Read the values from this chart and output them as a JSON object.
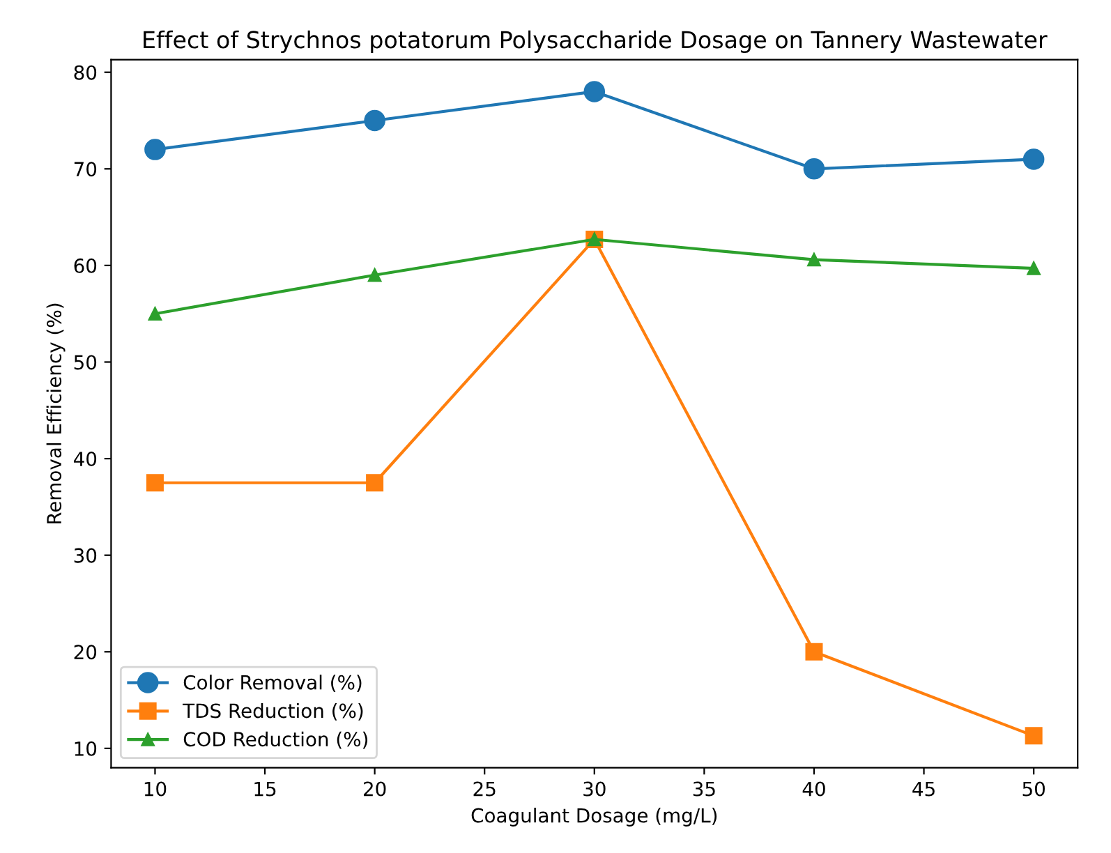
{
  "chart_data": {
    "type": "line",
    "title": "Effect of Strychnos potatorum Polysaccharide Dosage on Tannery Wastewater",
    "xlabel": "Coagulant Dosage (mg/L)",
    "ylabel": "Removal Efficiency (%)",
    "x": [
      10,
      20,
      30,
      40,
      50
    ],
    "series": [
      {
        "name": "Color Removal (%)",
        "color": "#1f77b4",
        "marker": "circle",
        "values": [
          72,
          75,
          78,
          70,
          71
        ]
      },
      {
        "name": "TDS Reduction (%)",
        "color": "#ff7f0e",
        "marker": "square",
        "values": [
          37.5,
          37.5,
          62.7,
          20,
          11.3
        ]
      },
      {
        "name": "COD Reduction (%)",
        "color": "#2ca02c",
        "marker": "triangle",
        "values": [
          55,
          59,
          62.7,
          60.6,
          59.7
        ]
      }
    ],
    "xlim": [
      8,
      52
    ],
    "xticks": [
      10,
      15,
      20,
      25,
      30,
      35,
      40,
      45,
      50
    ],
    "ylim": [
      8,
      81.3
    ],
    "yticks": [
      10,
      20,
      30,
      40,
      50,
      60,
      70,
      80
    ],
    "grid": false,
    "legend": "bottom left",
    "line_style": "solid"
  }
}
